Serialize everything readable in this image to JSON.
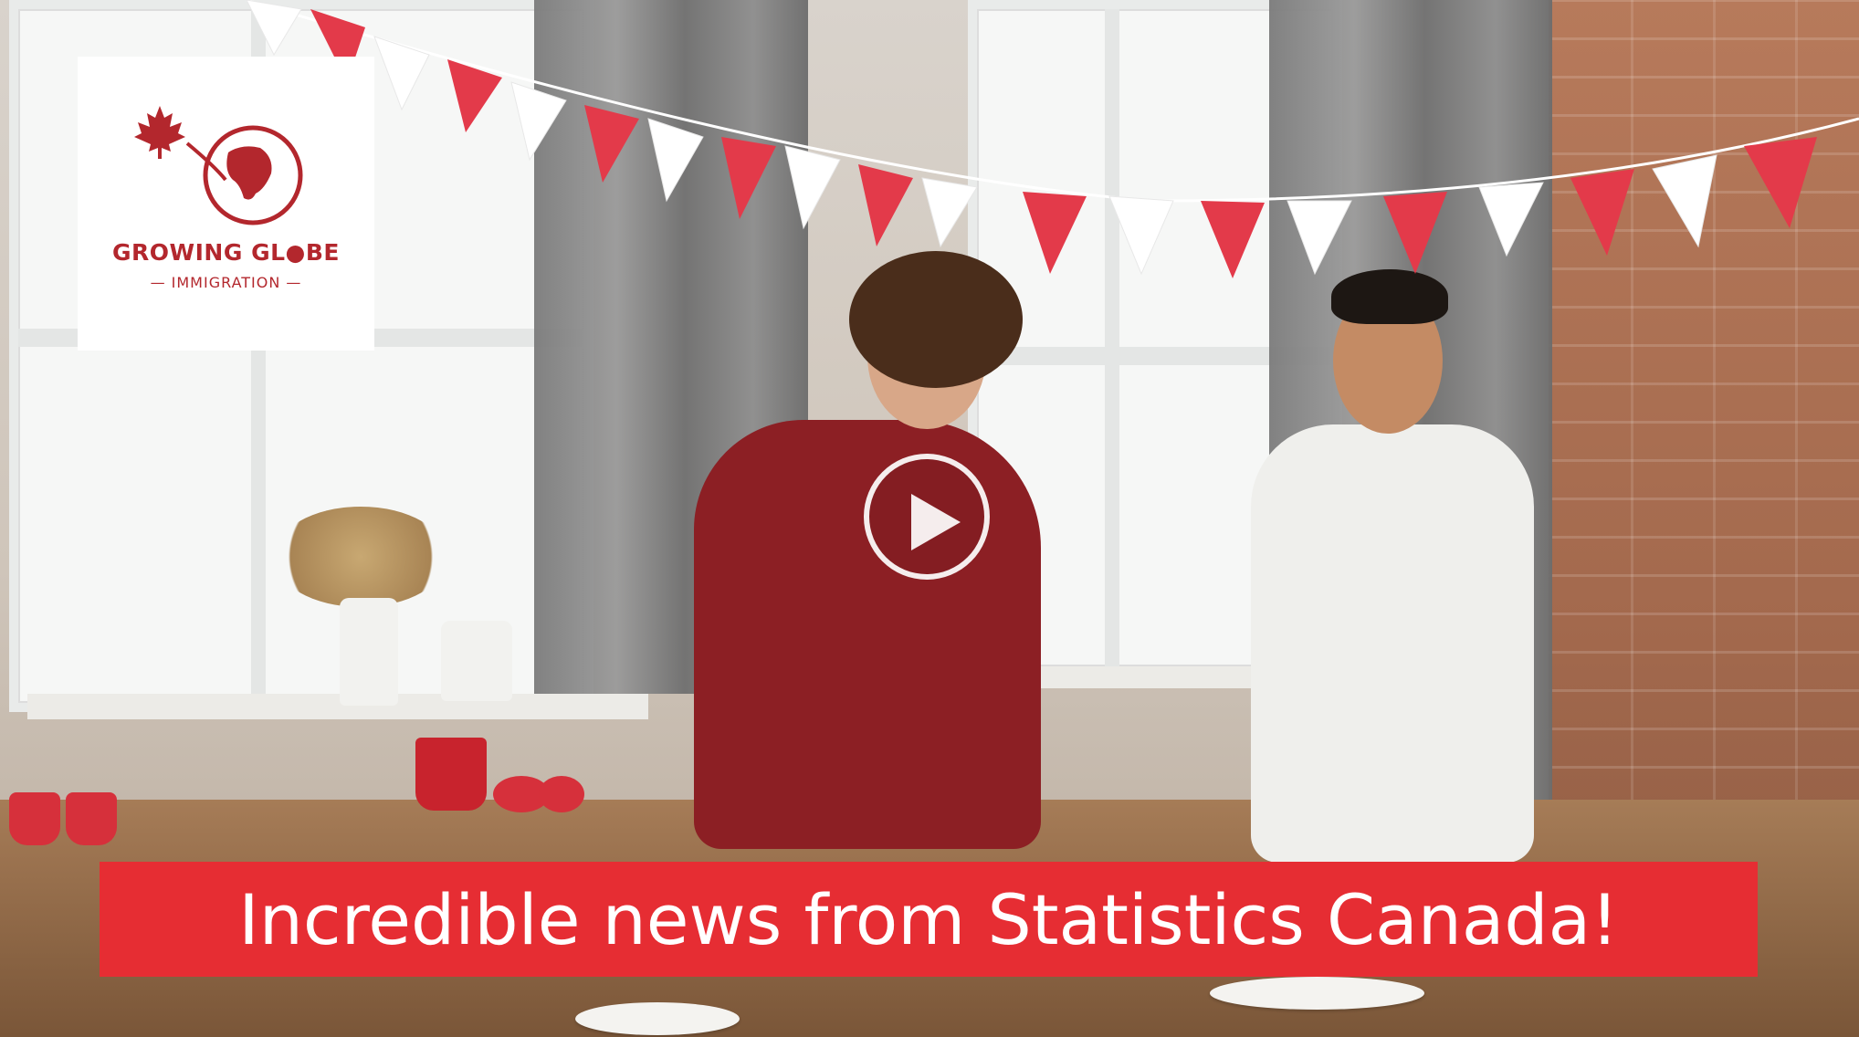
{
  "video": {
    "play_label": "Play video"
  },
  "logo": {
    "title": "GROWING GL●BE",
    "subtitle": "IMMIGRATION",
    "brand_color": "#b3272d"
  },
  "caption": {
    "text": "Incredible news from Statistics Canada!",
    "background": "#e62d33"
  },
  "icons": [
    "play-icon",
    "maple-leaf-icon",
    "globe-icon"
  ]
}
